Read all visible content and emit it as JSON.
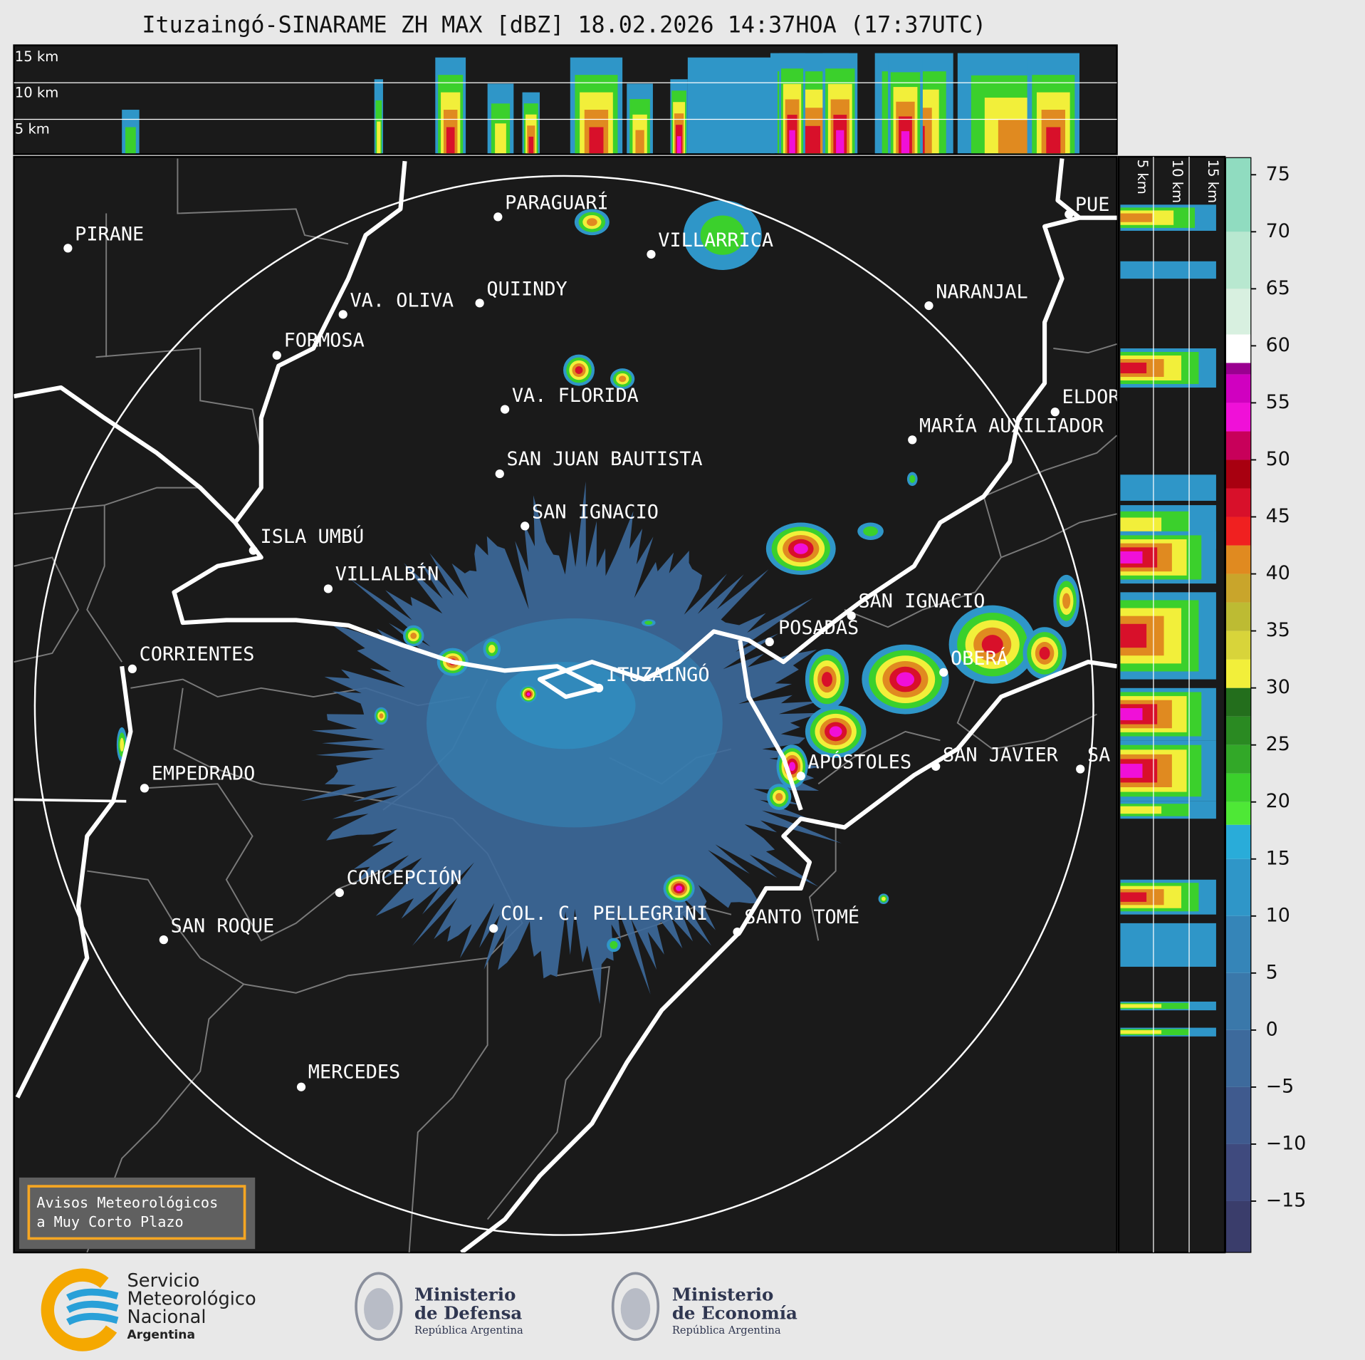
{
  "title": "Ituzaingó-SINARAME ZH MAX [dBZ] 18.02.2026 14:37HOA (17:37UTC)",
  "top_panel": {
    "height_labels": [
      "15 km",
      "10 km",
      "5 km"
    ]
  },
  "side_panel": {
    "height_labels": [
      "5 km",
      "10 km",
      "15 km"
    ]
  },
  "map": {
    "cities": [
      "PIRANE",
      "PARAGUARÍ",
      "VILLARRICA",
      "QUIINDY",
      "VA. OLIVA",
      "FORMOSA",
      "NARANJAL",
      "PUE",
      "VA. FLORIDA",
      "ELDOR",
      "MARÍA AUXILIADOR",
      "SAN JUAN BAUTISTA",
      "SAN IGNACIO",
      "ISLA UMBÚ",
      "VILLALBÍN",
      "SAN IGNACIO",
      "POSADAS",
      "CORRIENTES",
      "ITUZAINGÓ",
      "OBERÁ",
      "EMPEDRADO",
      "APÓSTOLES",
      "SAN JAVIER",
      "SA",
      "CONCEPCIÓN",
      "COL. C. PELLEGRINI",
      "SANTO TOMÉ",
      "SAN ROQUE",
      "MERCEDES"
    ],
    "notice": [
      "Avisos Meteorológicos",
      "a Muy Corto Plazo"
    ]
  },
  "colorbar": {
    "lim": [
      -19.5,
      76.5
    ],
    "ticks": [
      {
        "value": -15,
        "label": "−15"
      },
      {
        "value": -10,
        "label": "−10"
      },
      {
        "value": -5,
        "label": "−5"
      },
      0,
      5,
      10,
      15,
      20,
      25,
      30,
      35,
      40,
      45,
      50,
      55,
      60,
      65,
      70,
      75
    ],
    "bands": [
      {
        "from": -19.5,
        "to": -15,
        "color": "#3a3d6b"
      },
      {
        "from": -15,
        "to": -10,
        "color": "#3f4a7e"
      },
      {
        "from": -10,
        "to": -5,
        "color": "#3f5a8e"
      },
      {
        "from": -5,
        "to": 0,
        "color": "#3d6a9c"
      },
      {
        "from": 0,
        "to": 5,
        "color": "#3a78aa"
      },
      {
        "from": 5,
        "to": 10,
        "color": "#3585b8"
      },
      {
        "from": 10,
        "to": 15,
        "color": "#2f96c8"
      },
      {
        "from": 15,
        "to": 18,
        "color": "#29acd9"
      },
      {
        "from": 18,
        "to": 20,
        "color": "#4ee836"
      },
      {
        "from": 20,
        "to": 22.5,
        "color": "#3bd02c"
      },
      {
        "from": 22.5,
        "to": 25,
        "color": "#32a828"
      },
      {
        "from": 25,
        "to": 27.5,
        "color": "#2a8a22"
      },
      {
        "from": 27.5,
        "to": 30,
        "color": "#236e1c"
      },
      {
        "from": 30,
        "to": 32.5,
        "color": "#f2ef3a"
      },
      {
        "from": 32.5,
        "to": 35,
        "color": "#d8d43a"
      },
      {
        "from": 35,
        "to": 37.5,
        "color": "#bdbb33"
      },
      {
        "from": 37.5,
        "to": 40,
        "color": "#c9a52b"
      },
      {
        "from": 40,
        "to": 42.5,
        "color": "#e08a20"
      },
      {
        "from": 42.5,
        "to": 45,
        "color": "#f02020"
      },
      {
        "from": 45,
        "to": 47.5,
        "color": "#d8102a"
      },
      {
        "from": 47.5,
        "to": 50,
        "color": "#a80010"
      },
      {
        "from": 50,
        "to": 52.5,
        "color": "#c8005a"
      },
      {
        "from": 52.5,
        "to": 55,
        "color": "#f010d8"
      },
      {
        "from": 55,
        "to": 57.5,
        "color": "#d000c0"
      },
      {
        "from": 57.5,
        "to": 58.5,
        "color": "#9a0090"
      },
      {
        "from": 58.5,
        "to": 61,
        "color": "#ffffff"
      },
      {
        "from": 61,
        "to": 65,
        "color": "#d8f0e0"
      },
      {
        "from": 65,
        "to": 70,
        "color": "#b8e8d0"
      },
      {
        "from": 70,
        "to": 76.5,
        "color": "#90dcc0"
      }
    ]
  },
  "footer": {
    "smn": [
      "Servicio",
      "Meteorológico",
      "Nacional",
      "Argentina"
    ],
    "defensa": [
      "Ministerio",
      "de Defensa",
      "República Argentina"
    ],
    "economia": [
      "Ministerio",
      "de Economía",
      "República Argentina"
    ]
  }
}
